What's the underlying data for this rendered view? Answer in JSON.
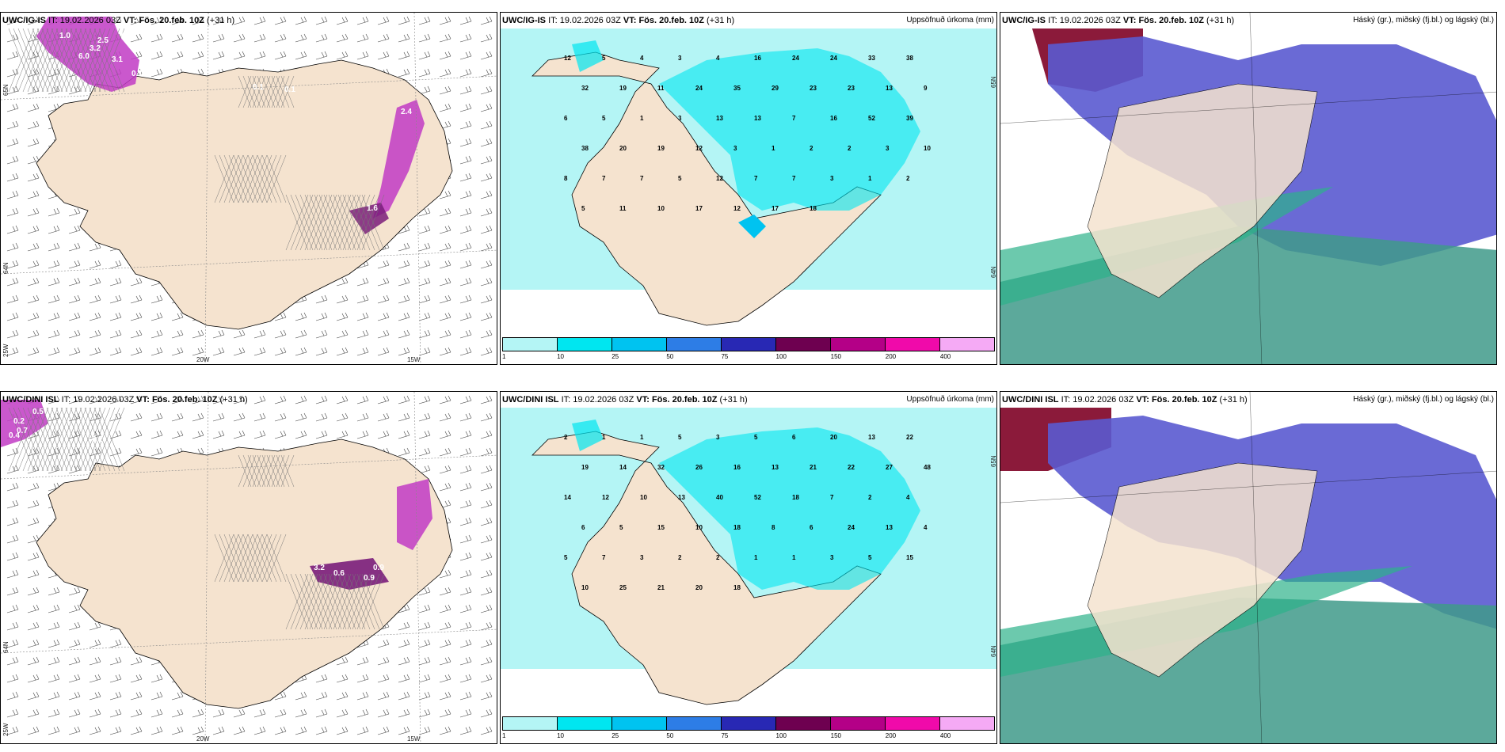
{
  "rows": [
    {
      "model": "UWC/IG-IS",
      "it_label": "IT:",
      "it_value": "19.02.2026 03Z",
      "vt_label": "VT:",
      "vt_value": "Fös. 20.feb. 10Z",
      "lead": "(+31 h)"
    },
    {
      "model": "UWC/DINI ISL",
      "it_label": "IT:",
      "it_value": "19.02.2026 03Z",
      "vt_label": "VT:",
      "vt_value": "Fös. 20.feb. 10Z",
      "lead": "(+31 h)"
    }
  ],
  "precip_title": "Uppsöfnuð úrkoma (mm)",
  "cloud_title": "Háský (gr.), miðský (fj.bl.) og lágský (bl.)",
  "axes": {
    "lon_20w": "20W",
    "lon_15w": "15W",
    "lon_25w": "25W",
    "lat_65n": "65N",
    "lat_64n": "64N"
  },
  "colorbar": {
    "ticks": [
      "1",
      "10",
      "25",
      "50",
      "75",
      "100",
      "150",
      "200",
      "400"
    ],
    "colors": [
      "#b4f5f5",
      "#00e6f0",
      "#00c3f0",
      "#2d7de6",
      "#2828b4",
      "#6e0050",
      "#b40087",
      "#f00aaa",
      "#f5aaf5"
    ]
  },
  "precip_values_top": [
    "12",
    "5",
    "4",
    "3",
    "4",
    "16",
    "24",
    "24",
    "33",
    "38",
    "32",
    "19",
    "11",
    "24",
    "35",
    "29",
    "23",
    "23",
    "13",
    "9",
    "6",
    "5",
    "1",
    "3",
    "13",
    "13",
    "7",
    "16",
    "52",
    "39",
    "38",
    "20",
    "19",
    "12",
    "3",
    "1",
    "2",
    "2",
    "3",
    "10",
    "8",
    "7",
    "7",
    "5",
    "12",
    "7",
    "7",
    "3",
    "1",
    "2",
    "5",
    "11",
    "10",
    "17",
    "12",
    "17",
    "18"
  ],
  "precip_values_bot": [
    "2",
    "1",
    "1",
    "5",
    "3",
    "5",
    "6",
    "20",
    "13",
    "22",
    "19",
    "14",
    "32",
    "26",
    "16",
    "13",
    "21",
    "22",
    "27",
    "48",
    "14",
    "12",
    "10",
    "13",
    "40",
    "52",
    "18",
    "7",
    "2",
    "4",
    "6",
    "5",
    "15",
    "10",
    "18",
    "8",
    "6",
    "24",
    "13",
    "4",
    "5",
    "7",
    "3",
    "2",
    "2",
    "1",
    "1",
    "3",
    "5",
    "15",
    "10",
    "25",
    "21",
    "20",
    "18"
  ],
  "snow_values_top": [
    "1.0",
    "1.6",
    "2.5",
    "3.2",
    "6.0",
    "3.1",
    "0.1",
    "0.1",
    "2.4",
    "0.1",
    "1.6"
  ],
  "snow_values_bot": [
    "0.5",
    "0.2",
    "0.4",
    "0.7",
    "0.2",
    "0.9",
    "0.6",
    "3.2",
    "0.9"
  ]
}
